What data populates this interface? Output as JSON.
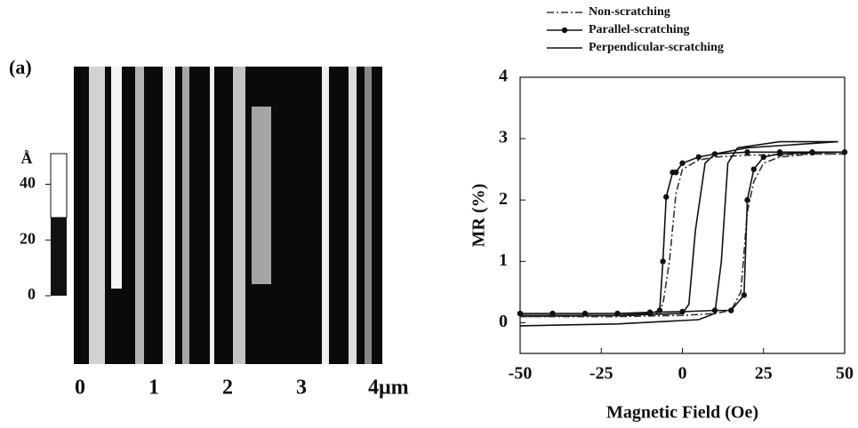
{
  "chart_data": [
    {
      "type": "image",
      "label": "(a)",
      "colorbar_unit": "Å",
      "colorbar_lim": [
        0,
        51
      ],
      "colorbar_ticks": [
        0,
        20,
        40
      ],
      "xlim": [
        0,
        4
      ],
      "xticks": [
        0,
        1,
        2,
        3,
        {
          "value": 4,
          "label": "4μm"
        }
      ]
    },
    {
      "type": "line",
      "xlabel": "Magnetic Field (Oe)",
      "ylabel": "MR (%)",
      "xlim": [
        -50,
        50
      ],
      "ylim": [
        -0.5,
        4
      ],
      "xticks": [
        -50,
        -25,
        0,
        25,
        50
      ],
      "yticks": [
        0,
        1,
        2,
        3,
        4
      ],
      "legend": "top",
      "series": [
        {
          "name": "Non-scratching",
          "color": "#333",
          "style": "dash-dot",
          "marker": "none",
          "x": [
            -50,
            -20,
            0,
            10,
            15,
            18,
            20,
            22,
            25,
            30,
            40,
            50,
            40,
            20,
            10,
            5,
            0,
            -2,
            -4,
            -6,
            -8,
            -15,
            -50
          ],
          "values": [
            0.1,
            0.1,
            0.12,
            0.15,
            0.2,
            0.5,
            1.8,
            2.3,
            2.6,
            2.7,
            2.75,
            2.75,
            2.75,
            2.73,
            2.7,
            2.65,
            2.5,
            2.1,
            1.0,
            0.3,
            0.15,
            0.12,
            0.1
          ]
        },
        {
          "name": "Parallel-scratching",
          "color": "#111",
          "style": "solid",
          "marker": "circle",
          "x": [
            -50,
            -40,
            -30,
            -20,
            -10,
            0,
            10,
            15,
            19,
            20,
            22,
            25,
            30,
            40,
            50,
            40,
            30,
            20,
            10,
            5,
            0,
            -2,
            -3,
            -5,
            -6,
            -7,
            -10,
            -20,
            -30,
            -40,
            -50
          ],
          "values": [
            0.15,
            0.15,
            0.15,
            0.15,
            0.17,
            0.18,
            0.2,
            0.2,
            0.45,
            2.0,
            2.5,
            2.7,
            2.75,
            2.77,
            2.78,
            2.78,
            2.78,
            2.78,
            2.75,
            2.7,
            2.6,
            2.45,
            2.45,
            2.05,
            1.0,
            0.2,
            0.15,
            0.15,
            0.15,
            0.15,
            0.15
          ]
        },
        {
          "name": "Perpendicular-scratching",
          "color": "#111",
          "style": "solid",
          "marker": "none",
          "x": [
            -50,
            -20,
            5,
            10,
            12,
            14,
            17,
            30,
            48,
            20,
            10,
            7,
            4,
            2,
            0,
            -20,
            -50
          ],
          "values": [
            -0.05,
            -0.02,
            0.05,
            0.15,
            1.0,
            2.6,
            2.85,
            2.95,
            2.95,
            2.85,
            2.75,
            2.6,
            1.5,
            0.3,
            0.15,
            0.12,
            0.12
          ]
        }
      ]
    }
  ]
}
